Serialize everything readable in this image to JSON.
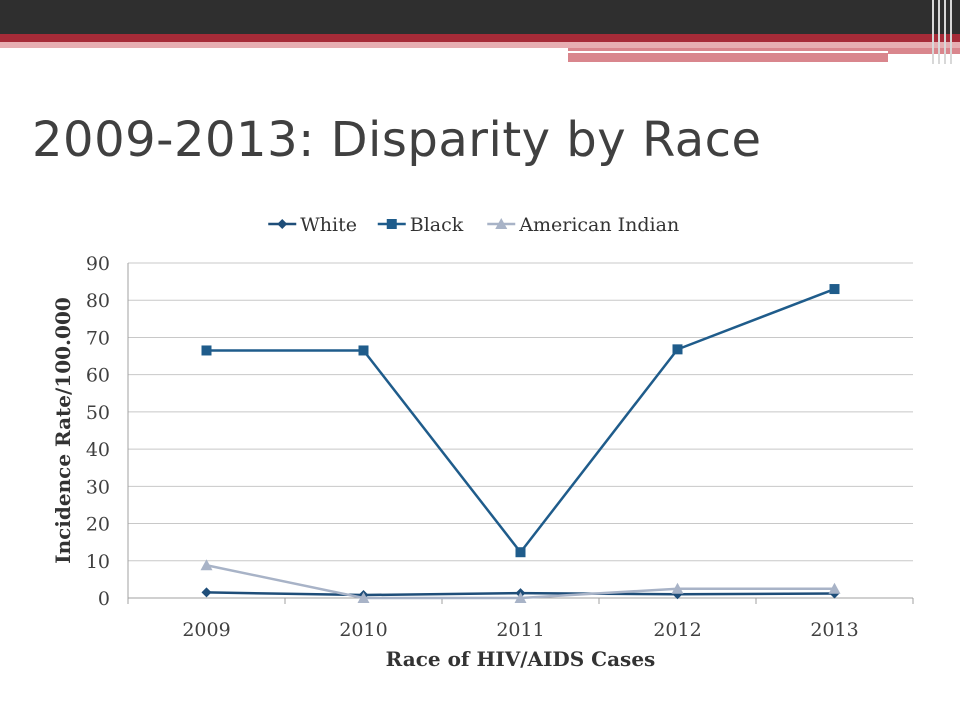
{
  "slide": {
    "title": "2009-2013: Disparity by Race"
  },
  "chart_data": {
    "type": "line",
    "categories": [
      "2009",
      "2010",
      "2011",
      "2012",
      "2013"
    ],
    "series": [
      {
        "name": "White",
        "values": [
          1.5,
          0.8,
          1.3,
          1.0,
          1.2
        ],
        "color": "#1f4e79",
        "marker": "diamond"
      },
      {
        "name": "Black",
        "values": [
          66.5,
          66.5,
          12.3,
          66.8,
          83.0
        ],
        "color": "#1f5c8b",
        "marker": "square"
      },
      {
        "name": "American Indian",
        "values": [
          8.8,
          0.0,
          0.0,
          2.5,
          2.5
        ],
        "color": "#a8b3c7",
        "marker": "triangle"
      }
    ],
    "xlabel": "Race of HIV/AIDS Cases",
    "ylabel": "Incidence Rate/100.000",
    "ylim": [
      0,
      90
    ],
    "yticks": [
      "0",
      "10",
      "20",
      "30",
      "40",
      "50",
      "60",
      "70",
      "80",
      "90"
    ],
    "grid": true,
    "legend_position": "top"
  }
}
